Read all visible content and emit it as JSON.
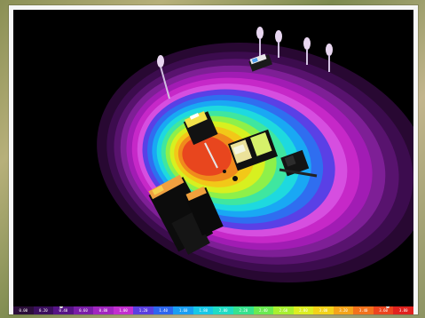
{
  "viewport": {
    "background": "#000000",
    "contour_colors": [
      "#280832",
      "#3c0c4e",
      "#58136e",
      "#7e1f96",
      "#a11cb4",
      "#c628c8",
      "#d64ee0",
      "#5a40e6",
      "#2f6ef0",
      "#19a8f4",
      "#1ed9df",
      "#3fe6a0",
      "#8ef04a",
      "#d7f020",
      "#f2c818",
      "#f08a1c",
      "#e8461e"
    ]
  },
  "scale_bar": {
    "segments": [
      {
        "label": "0.00",
        "color": "#2b0e3a"
      },
      {
        "label": "0.20",
        "color": "#3b0f5e"
      },
      {
        "label": "0.40",
        "color": "#561486"
      },
      {
        "label": "0.60",
        "color": "#7a1ea8"
      },
      {
        "label": "0.80",
        "color": "#a126c0"
      },
      {
        "label": "1.00",
        "color": "#c22fd0"
      },
      {
        "label": "1.20",
        "color": "#5a3fe0"
      },
      {
        "label": "1.40",
        "color": "#2e66ee"
      },
      {
        "label": "1.60",
        "color": "#1a9ef2"
      },
      {
        "label": "1.80",
        "color": "#18c8e6"
      },
      {
        "label": "2.00",
        "color": "#20dcc4"
      },
      {
        "label": "2.20",
        "color": "#36e28e"
      },
      {
        "label": "2.40",
        "color": "#6aea52"
      },
      {
        "label": "2.60",
        "color": "#a8f030"
      },
      {
        "label": "2.80",
        "color": "#dcee22"
      },
      {
        "label": "3.00",
        "color": "#f2d21a"
      },
      {
        "label": "3.20",
        "color": "#f4a41a"
      },
      {
        "label": "3.40",
        "color": "#f2721c"
      },
      {
        "label": "3.60",
        "color": "#ec441e"
      },
      {
        "label": "3.80",
        "color": "#e0221e"
      }
    ]
  }
}
